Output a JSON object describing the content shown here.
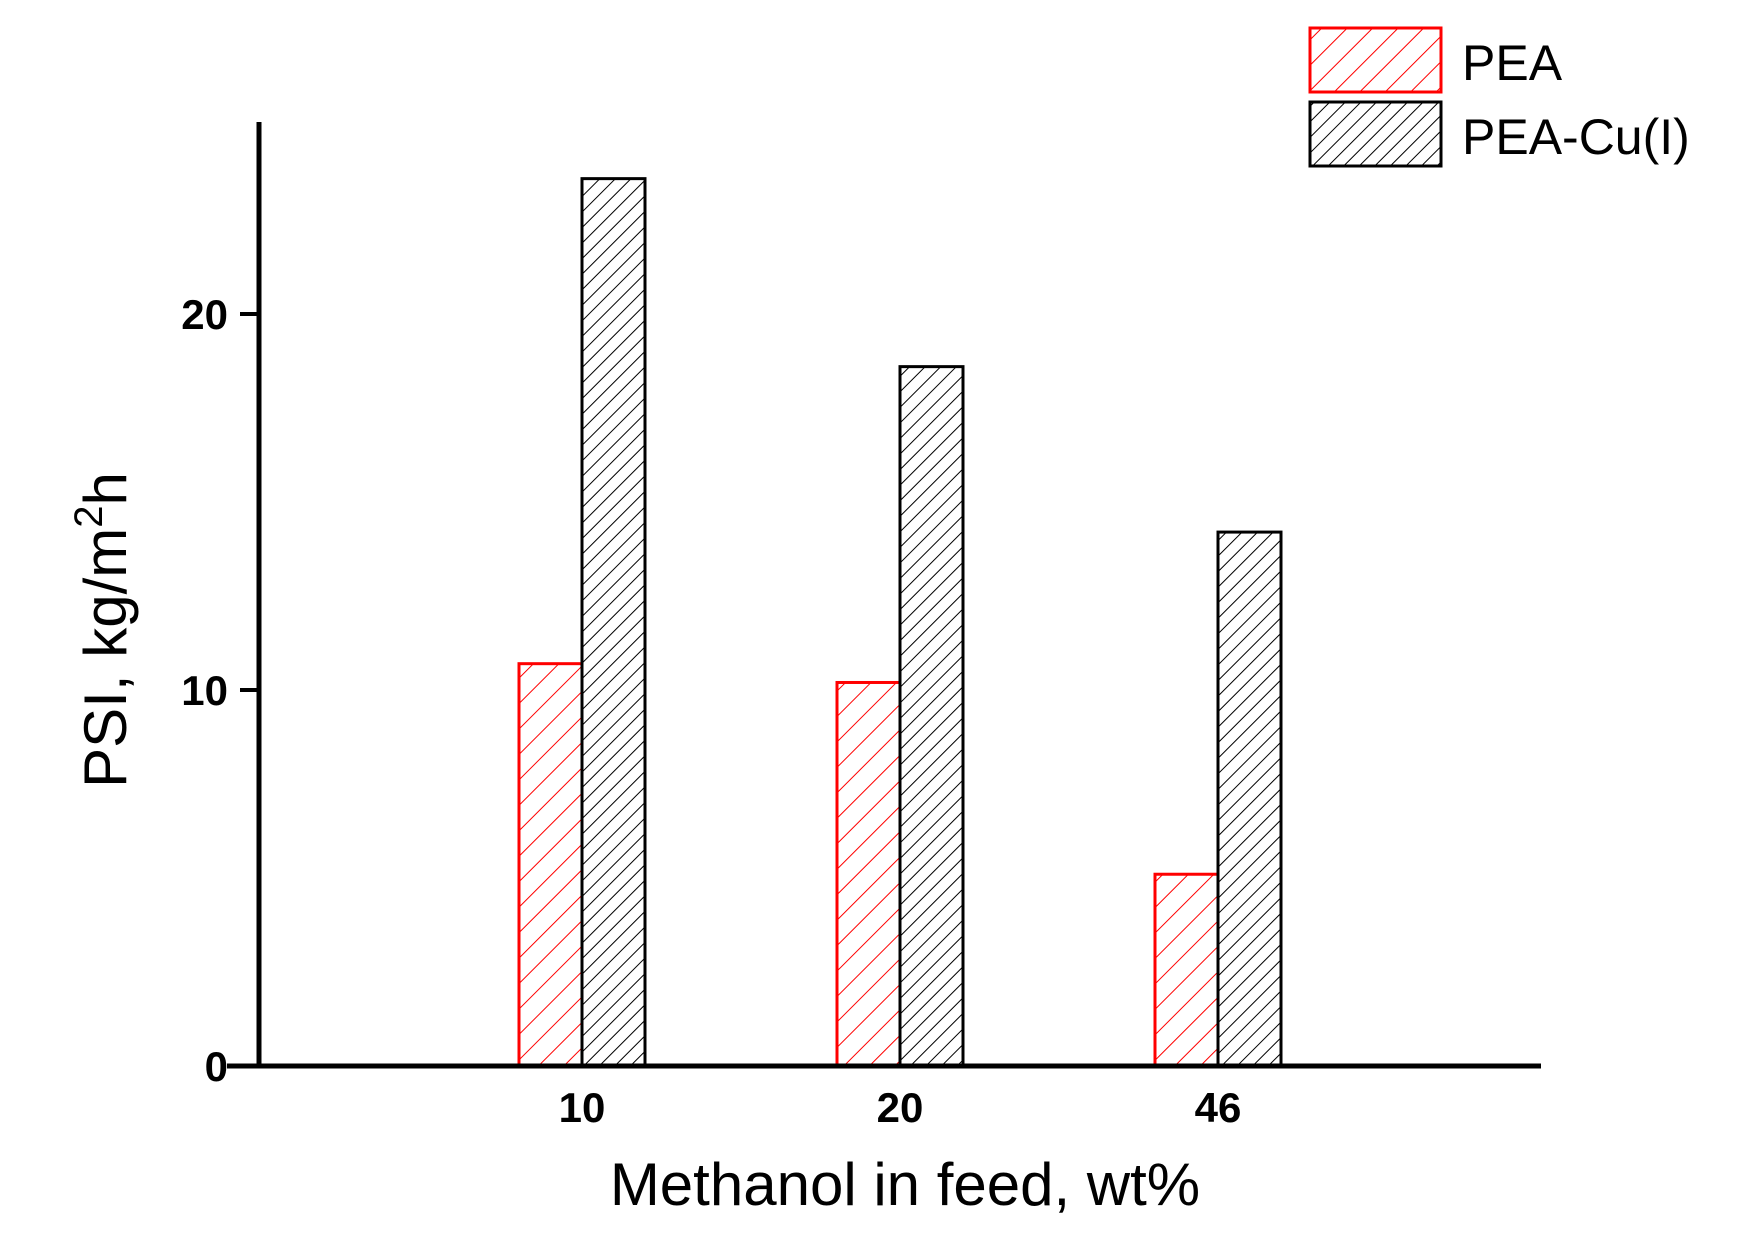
{
  "chart_data": {
    "type": "bar",
    "categories": [
      "10",
      "20",
      "46"
    ],
    "series": [
      {
        "name": "PEA",
        "color": "#ff0000",
        "values": [
          10.7,
          10.2,
          5.1
        ]
      },
      {
        "name": "PEA-Cu(I)",
        "color": "#000000",
        "values": [
          23.6,
          18.6,
          14.2
        ]
      }
    ],
    "xlabel": "Methanol in feed, wt%",
    "ylabel": {
      "main": "PSI, kg/m",
      "sup": "2",
      "tail": "h"
    },
    "ylim": [
      0,
      25
    ],
    "yticks": [
      0,
      10,
      20
    ],
    "legend_position": "top-right",
    "grid": false
  }
}
